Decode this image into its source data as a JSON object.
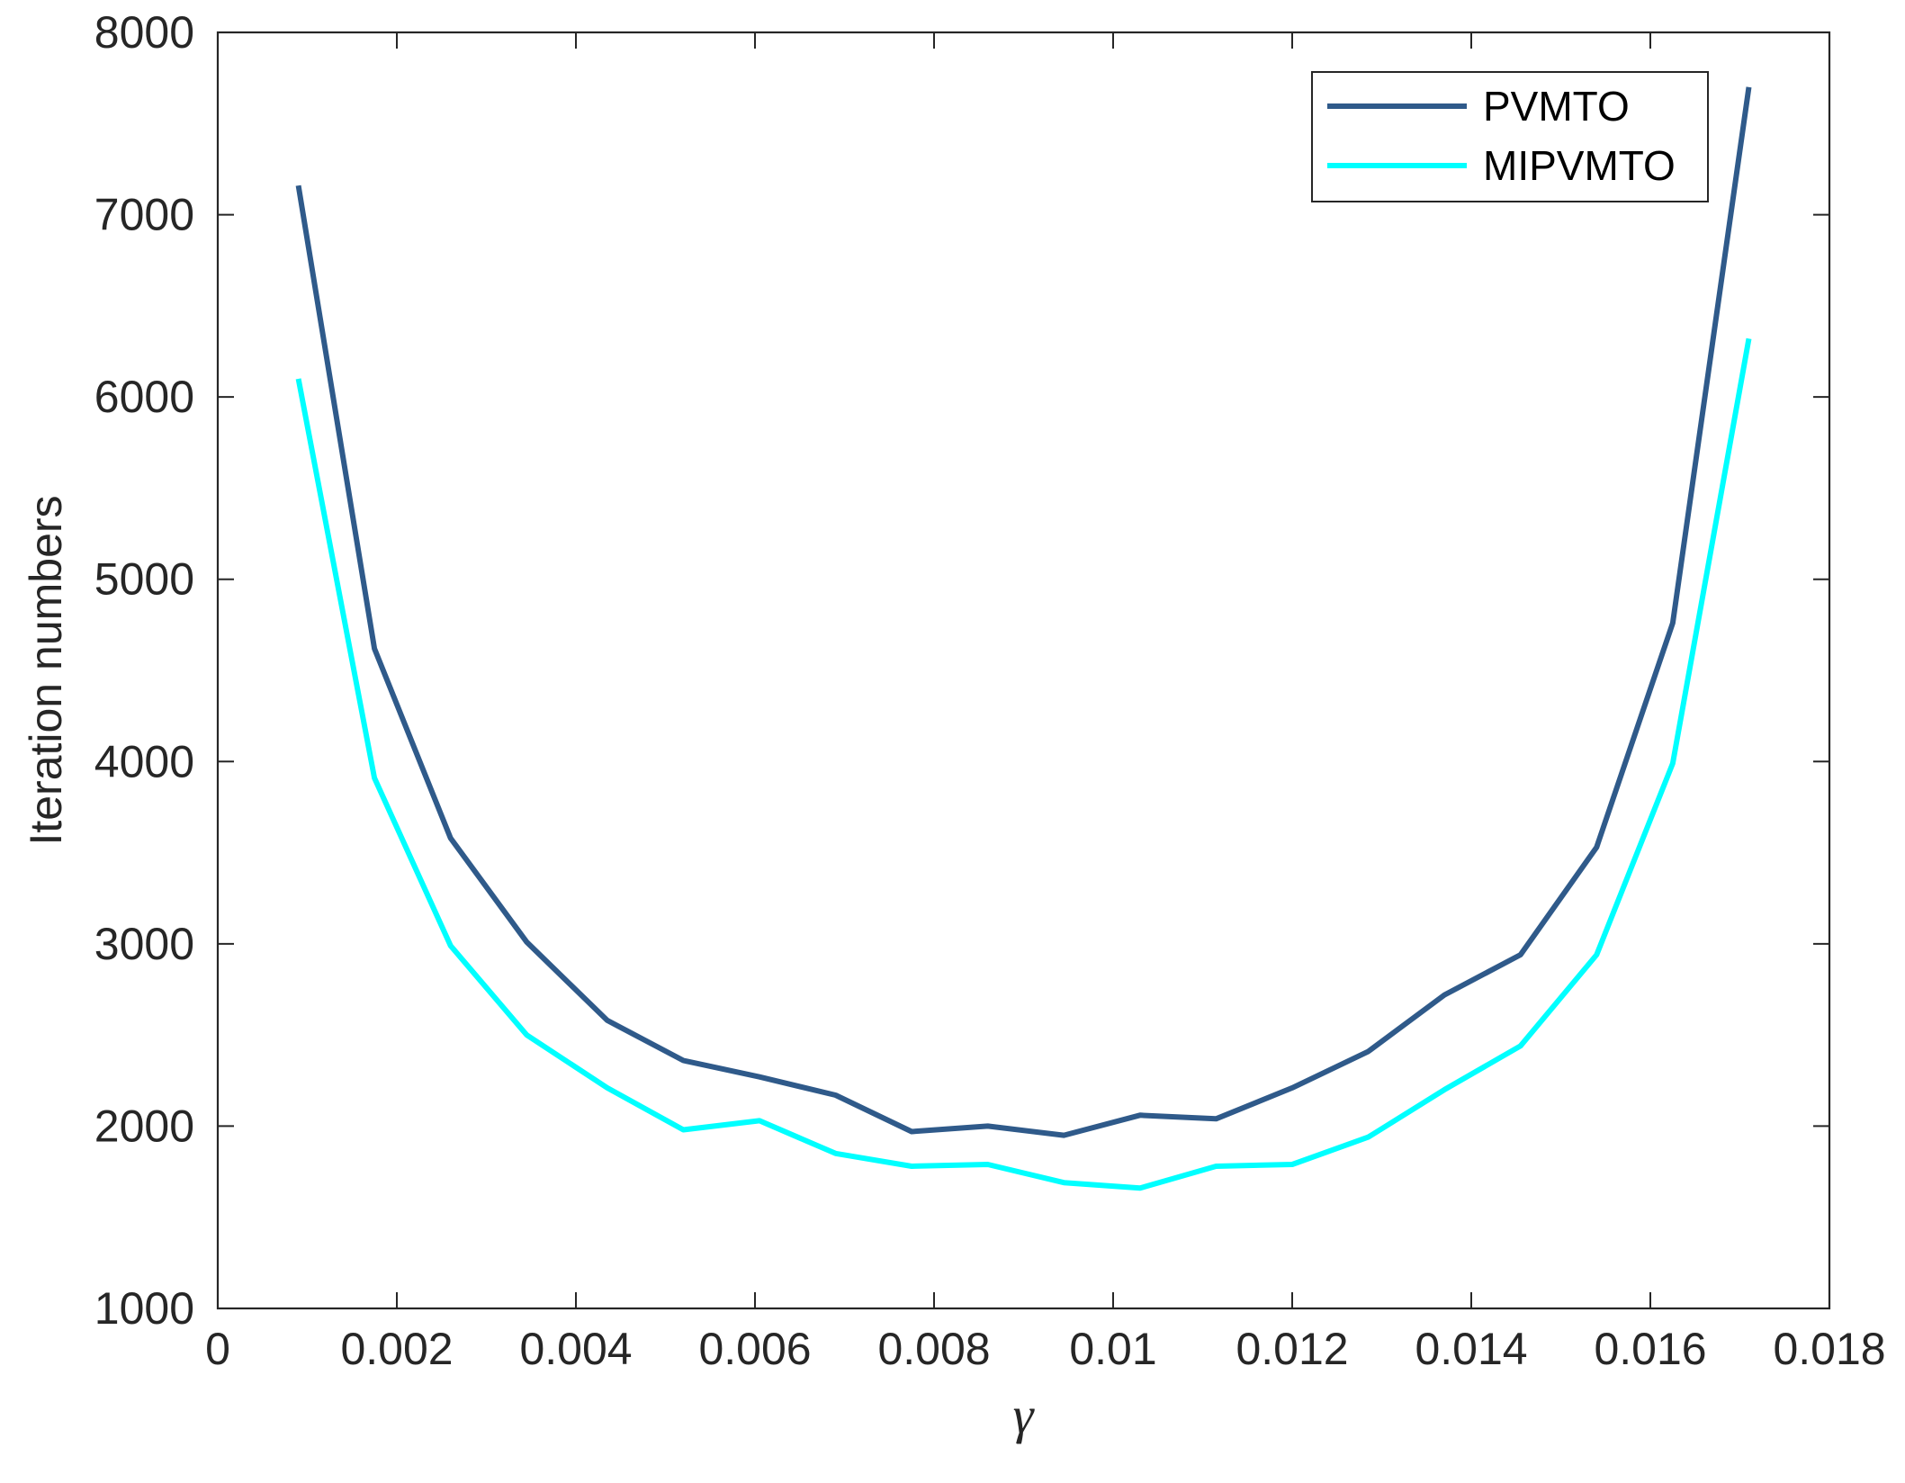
{
  "chart_data": {
    "type": "line",
    "xlabel": "γ",
    "ylabel": "Iteration numbers",
    "xlim": [
      0,
      0.018
    ],
    "ylim": [
      1000,
      8000
    ],
    "xticks": [
      0,
      0.002,
      0.004,
      0.006,
      0.008,
      0.01,
      0.012,
      0.014,
      0.016,
      0.018
    ],
    "xtick_labels": [
      "0",
      "0.002",
      "0.004",
      "0.006",
      "0.008",
      "0.01",
      "0.012",
      "0.014",
      "0.016",
      "0.018"
    ],
    "yticks": [
      1000,
      2000,
      3000,
      4000,
      5000,
      6000,
      7000,
      8000
    ],
    "ytick_labels": [
      "1000",
      "2000",
      "3000",
      "4000",
      "5000",
      "6000",
      "7000",
      "8000"
    ],
    "grid": false,
    "legend_position": "top-right",
    "x": [
      0.0009,
      0.00175,
      0.0026,
      0.00345,
      0.00435,
      0.0052,
      0.00605,
      0.0069,
      0.00775,
      0.0086,
      0.00945,
      0.0103,
      0.01115,
      0.012,
      0.01285,
      0.0137,
      0.01455,
      0.0154,
      0.01625,
      0.0171
    ],
    "series": [
      {
        "name": "PVMTO",
        "color": "#2f5a8a",
        "values": [
          7160,
          4620,
          3580,
          3010,
          2580,
          2360,
          2270,
          2170,
          1970,
          2000,
          1950,
          2060,
          2040,
          2210,
          2410,
          2720,
          2940,
          3530,
          4760,
          7700
        ]
      },
      {
        "name": "MIPVMTO",
        "color": "#00ffff",
        "values": [
          6100,
          3910,
          2990,
          2500,
          2210,
          1980,
          2030,
          1850,
          1780,
          1790,
          1690,
          1660,
          1780,
          1790,
          1940,
          2200,
          2440,
          2940,
          3990,
          6320
        ]
      }
    ]
  }
}
